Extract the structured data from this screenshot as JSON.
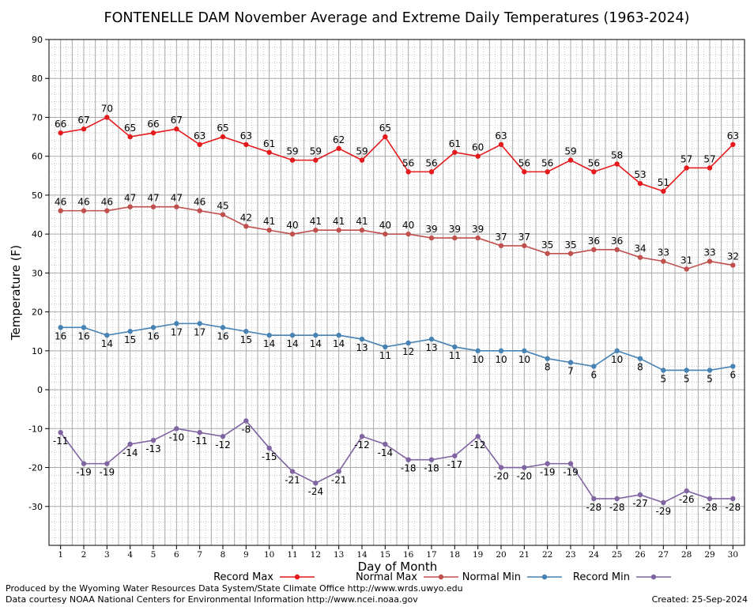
{
  "chart_data": {
    "type": "line",
    "title": "FONTENELLE DAM November Average and Extreme Daily Temperatures (1963-2024)",
    "xlabel": "Day of Month",
    "ylabel": "Temperature (F)",
    "ylim": [
      -40,
      90
    ],
    "yticks": [
      -30,
      -20,
      -10,
      0,
      10,
      20,
      30,
      40,
      50,
      60,
      70,
      80,
      90
    ],
    "grid": true,
    "legend_placement": "bottom",
    "x": [
      1,
      2,
      3,
      4,
      5,
      6,
      7,
      8,
      9,
      10,
      11,
      12,
      13,
      14,
      15,
      16,
      17,
      18,
      19,
      20,
      21,
      22,
      23,
      24,
      25,
      26,
      27,
      28,
      29,
      30
    ],
    "series": [
      {
        "name": "Record Max",
        "color": "#e41a1c",
        "label_pos": "above",
        "values": [
          66,
          67,
          70,
          65,
          66,
          67,
          63,
          65,
          63,
          61,
          59,
          59,
          62,
          59,
          65,
          56,
          56,
          61,
          60,
          63,
          56,
          56,
          59,
          56,
          58,
          53,
          51,
          57,
          57,
          63
        ]
      },
      {
        "name": "Normal Max",
        "color": "#c0504d",
        "label_pos": "above",
        "values": [
          46,
          46,
          46,
          47,
          47,
          47,
          46,
          45,
          42,
          41,
          40,
          41,
          41,
          41,
          40,
          40,
          39,
          39,
          39,
          37,
          37,
          35,
          35,
          36,
          36,
          34,
          33,
          31,
          33,
          32
        ]
      },
      {
        "name": "Normal Min",
        "color": "#4682b4",
        "label_pos": "below",
        "values": [
          16,
          16,
          14,
          15,
          16,
          17,
          17,
          16,
          15,
          14,
          14,
          14,
          14,
          13,
          11,
          12,
          13,
          11,
          10,
          10,
          10,
          8,
          7,
          6,
          10,
          8,
          5,
          5,
          5,
          6
        ]
      },
      {
        "name": "Record Min",
        "color": "#8064a2",
        "label_pos": "below",
        "values": [
          -11,
          -19,
          -19,
          -14,
          -13,
          -10,
          -11,
          -12,
          -8,
          -15,
          -21,
          -24,
          -21,
          -12,
          -14,
          -18,
          -18,
          -17,
          -12,
          -20,
          -20,
          -19,
          -19,
          -28,
          -28,
          -27,
          -29,
          -26,
          -28,
          -28
        ]
      }
    ]
  },
  "footer": {
    "line1": "Produced by the Wyoming Water Resources Data System/State Climate Office http://www.wrds.uwyo.edu",
    "line2": "Data courtesy NOAA National Centers for Environmental Information http://www.ncei.noaa.gov",
    "created": "Created:  25-Sep-2024"
  }
}
